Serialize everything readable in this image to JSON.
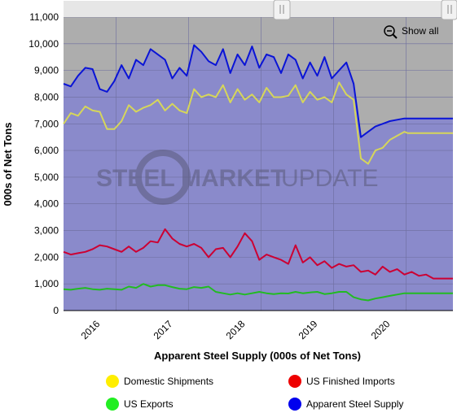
{
  "colors": {
    "plot_background": "#8a8acb",
    "upper_background": "#adadad",
    "grid": "#6e6e9e",
    "domestic": "#d6d65a",
    "imports": "#cc0033",
    "exports": "#22bb22",
    "supply": "#0a14d6",
    "legend_domestic": "#ffee00",
    "legend_imports": "#ee0000",
    "legend_exports": "#22ee22",
    "legend_supply": "#0000ee"
  },
  "controls": {
    "show_all_label": "Show all",
    "zoom_icon": "zoom-out-icon"
  },
  "watermark": {
    "word1": "STEEL",
    "word2": "MARKET",
    "word3": "UPDATE"
  },
  "chart_data": {
    "type": "line",
    "title": "",
    "xlabel": "Apparent Steel Supply (000s of Net Tons)",
    "ylabel": "000s of Net Tons",
    "ylim": [
      0,
      11000
    ],
    "yticks": [
      0,
      1000,
      2000,
      3000,
      4000,
      5000,
      6000,
      7000,
      8000,
      9000,
      10000,
      11000
    ],
    "ytick_labels": [
      "0",
      "1,000",
      "2,000",
      "3,000",
      "4,000",
      "5,000",
      "6,000",
      "7,000",
      "8,000",
      "9,000",
      "10,000",
      "11,000"
    ],
    "xlim": [
      2015.3,
      2020.67
    ],
    "xticks": [
      2016,
      2017,
      2018,
      2019,
      2020
    ],
    "xtick_labels": [
      "2016",
      "2017",
      "2018",
      "2019",
      "2020"
    ],
    "grid": true,
    "legend_position": "bottom",
    "series": [
      {
        "name": "Domestic Shipments",
        "x": [
          2015.3,
          2015.4,
          2015.5,
          2015.6,
          2015.7,
          2015.8,
          2015.9,
          2016.0,
          2016.1,
          2016.2,
          2016.3,
          2016.4,
          2016.5,
          2016.6,
          2016.7,
          2016.8,
          2016.9,
          2017.0,
          2017.1,
          2017.2,
          2017.3,
          2017.4,
          2017.5,
          2017.6,
          2017.7,
          2017.8,
          2017.9,
          2018.0,
          2018.1,
          2018.2,
          2018.3,
          2018.4,
          2018.5,
          2018.6,
          2018.7,
          2018.8,
          2018.9,
          2019.0,
          2019.1,
          2019.2,
          2019.3,
          2019.4,
          2019.5,
          2019.6,
          2019.7,
          2019.8,
          2019.9,
          2020.0,
          2020.05,
          2020.1,
          2020.2,
          2020.3,
          2020.4,
          2020.5,
          2020.6,
          2020.67
        ],
        "values": [
          7000,
          7400,
          7300,
          7650,
          7500,
          7450,
          6800,
          6800,
          7100,
          7700,
          7450,
          7600,
          7700,
          7900,
          7500,
          7750,
          7500,
          7400,
          8300,
          8000,
          8100,
          8000,
          8450,
          7800,
          8300,
          7900,
          8100,
          7800,
          8350,
          8000,
          8000,
          8050,
          8450,
          7800,
          8200,
          7900,
          8000,
          7800,
          8550,
          8100,
          7900,
          5700,
          5500,
          6000,
          6100,
          6400,
          6550,
          6700,
          6650,
          6650,
          6650,
          6650,
          6650,
          6650,
          6650,
          6650
        ]
      },
      {
        "name": "US Finished Imports",
        "x": [
          2015.3,
          2015.4,
          2015.5,
          2015.6,
          2015.7,
          2015.8,
          2015.9,
          2016.0,
          2016.1,
          2016.2,
          2016.3,
          2016.4,
          2016.5,
          2016.6,
          2016.7,
          2016.8,
          2016.9,
          2017.0,
          2017.1,
          2017.2,
          2017.3,
          2017.4,
          2017.5,
          2017.6,
          2017.7,
          2017.8,
          2017.9,
          2018.0,
          2018.1,
          2018.2,
          2018.3,
          2018.4,
          2018.5,
          2018.6,
          2018.7,
          2018.8,
          2018.9,
          2019.0,
          2019.1,
          2019.2,
          2019.3,
          2019.4,
          2019.5,
          2019.6,
          2019.7,
          2019.8,
          2019.9,
          2020.0,
          2020.1,
          2020.2,
          2020.3,
          2020.4,
          2020.5,
          2020.6,
          2020.67
        ],
        "values": [
          2200,
          2100,
          2150,
          2200,
          2300,
          2450,
          2400,
          2300,
          2200,
          2400,
          2200,
          2350,
          2600,
          2550,
          3050,
          2700,
          2500,
          2400,
          2500,
          2350,
          2000,
          2300,
          2350,
          2000,
          2400,
          2900,
          2600,
          1900,
          2100,
          2000,
          1900,
          1750,
          2450,
          1800,
          2000,
          1700,
          1850,
          1600,
          1750,
          1650,
          1700,
          1450,
          1500,
          1350,
          1650,
          1450,
          1550,
          1350,
          1450,
          1300,
          1350,
          1200,
          1200,
          1200,
          1200
        ]
      },
      {
        "name": "US Exports",
        "x": [
          2015.3,
          2015.4,
          2015.5,
          2015.6,
          2015.7,
          2015.8,
          2015.9,
          2016.0,
          2016.1,
          2016.2,
          2016.3,
          2016.4,
          2016.5,
          2016.6,
          2016.7,
          2016.8,
          2016.9,
          2017.0,
          2017.1,
          2017.2,
          2017.3,
          2017.4,
          2017.5,
          2017.6,
          2017.7,
          2017.8,
          2017.9,
          2018.0,
          2018.1,
          2018.2,
          2018.3,
          2018.4,
          2018.5,
          2018.6,
          2018.7,
          2018.8,
          2018.9,
          2019.0,
          2019.1,
          2019.2,
          2019.3,
          2019.4,
          2019.5,
          2019.6,
          2019.7,
          2019.8,
          2019.9,
          2020.0,
          2020.1,
          2020.2,
          2020.3,
          2020.4,
          2020.5,
          2020.6,
          2020.67
        ],
        "values": [
          800,
          780,
          820,
          850,
          800,
          780,
          820,
          800,
          780,
          900,
          850,
          1000,
          900,
          950,
          950,
          880,
          820,
          800,
          880,
          850,
          900,
          700,
          650,
          600,
          650,
          600,
          650,
          700,
          650,
          620,
          650,
          640,
          700,
          650,
          680,
          700,
          620,
          650,
          700,
          700,
          500,
          420,
          380,
          450,
          500,
          550,
          600,
          650,
          650,
          650,
          650,
          650,
          650,
          650,
          650
        ]
      },
      {
        "name": "Apparent Steel Supply",
        "x": [
          2015.3,
          2015.4,
          2015.5,
          2015.6,
          2015.7,
          2015.8,
          2015.9,
          2016.0,
          2016.1,
          2016.2,
          2016.3,
          2016.4,
          2016.5,
          2016.6,
          2016.7,
          2016.8,
          2016.9,
          2017.0,
          2017.1,
          2017.2,
          2017.3,
          2017.4,
          2017.5,
          2017.6,
          2017.7,
          2017.8,
          2017.9,
          2018.0,
          2018.1,
          2018.2,
          2018.3,
          2018.4,
          2018.5,
          2018.6,
          2018.7,
          2018.8,
          2018.9,
          2019.0,
          2019.1,
          2019.2,
          2019.3,
          2019.4,
          2019.5,
          2019.6,
          2019.7,
          2019.8,
          2019.9,
          2020.0,
          2020.05,
          2020.1,
          2020.2,
          2020.3,
          2020.4,
          2020.5,
          2020.6,
          2020.67
        ],
        "values": [
          8500,
          8400,
          8800,
          9100,
          9050,
          8300,
          8200,
          8600,
          9200,
          8700,
          9400,
          9200,
          9800,
          9600,
          9400,
          8700,
          9100,
          8800,
          9950,
          9700,
          9350,
          9200,
          9800,
          8900,
          9600,
          9200,
          9900,
          9100,
          9600,
          9500,
          8900,
          9600,
          9400,
          8700,
          9300,
          8800,
          9500,
          8700,
          9000,
          9300,
          8500,
          6500,
          6700,
          6900,
          7000,
          7100,
          7150,
          7200,
          7200,
          7200,
          7200,
          7200,
          7200,
          7200,
          7200,
          7200
        ]
      }
    ]
  }
}
